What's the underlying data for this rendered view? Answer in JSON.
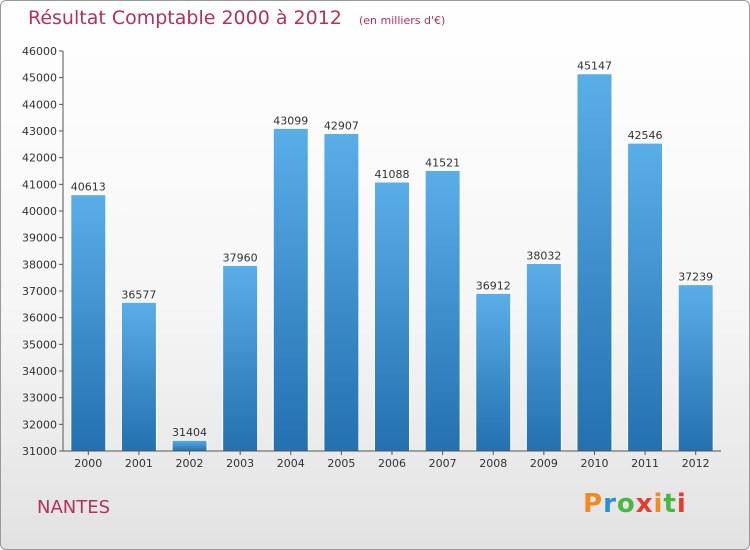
{
  "chart_data": {
    "type": "bar",
    "title": "Résultat Comptable 2000 à 2012",
    "subtitle": "(en milliers d'€)",
    "xlabel": "",
    "ylabel": "",
    "categories": [
      "2000",
      "2001",
      "2002",
      "2003",
      "2004",
      "2005",
      "2006",
      "2007",
      "2008",
      "2009",
      "2010",
      "2011",
      "2012"
    ],
    "values": [
      40613,
      36577,
      31404,
      37960,
      43099,
      42907,
      41088,
      41521,
      36912,
      38032,
      45147,
      42546,
      37239
    ],
    "ylim": [
      31000,
      46000
    ],
    "ytick_step": 1000,
    "grid": false,
    "bar_color_top": "#5aaee8",
    "bar_color_bottom": "#2470b0"
  },
  "footer": {
    "city": "NANTES",
    "brand_letters": [
      "P",
      "r",
      "o",
      "x",
      "i",
      "t",
      "i"
    ],
    "brand_colors": [
      "#f18a1f",
      "#2a8fd9",
      "#49b843",
      "#e43c2f",
      "#f18a1f",
      "#49b843",
      "#e43c2f"
    ]
  },
  "colors": {
    "title": "#b5305d",
    "axis": "#555555"
  }
}
